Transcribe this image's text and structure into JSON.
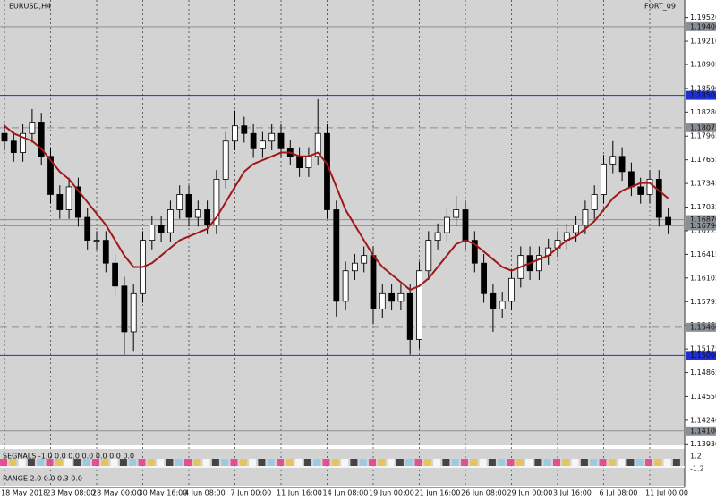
{
  "chart_data": {
    "type": "candlestick",
    "title": "EURUSD,H4",
    "indicator_name": "FORT_09",
    "categories": [
      "18 May 2018",
      null,
      null,
      null,
      null,
      "23 May 08:00",
      null,
      null,
      null,
      null,
      "28 May 00:00",
      null,
      null,
      null,
      null,
      "30 May 16:00",
      null,
      null,
      null,
      null,
      "4 Jun 08:00",
      null,
      null,
      null,
      null,
      "7 Jun 00:00",
      null,
      null,
      null,
      null,
      "11 Jun 16:00",
      null,
      null,
      null,
      null,
      "14 Jun 08:00",
      null,
      null,
      null,
      null,
      "19 Jun 00:00",
      null,
      null,
      null,
      null,
      "21 Jun 16:00",
      null,
      null,
      null,
      null,
      "26 Jun 08:00",
      null,
      null,
      null,
      null,
      "29 Jun 00:00",
      null,
      null,
      null,
      null,
      "3 Jul 16:00",
      null,
      null,
      null,
      null,
      "6 Jul 08:00",
      null,
      null,
      null,
      null,
      "11 Jul 00:00",
      null,
      null
    ],
    "open": [
      1.18,
      1.179,
      1.1775,
      1.18,
      1.1815,
      1.177,
      1.172,
      1.17,
      1.173,
      1.169,
      1.166,
      1.166,
      1.163,
      1.16,
      1.154,
      1.159,
      1.166,
      1.168,
      1.167,
      1.17,
      1.172,
      1.169,
      1.17,
      1.168,
      1.174,
      1.179,
      1.181,
      1.18,
      1.178,
      1.179,
      1.18,
      1.178,
      1.177,
      1.1755,
      1.177,
      1.18,
      1.17,
      1.158,
      1.162,
      1.163,
      1.164,
      1.157,
      1.159,
      1.158,
      1.159,
      1.153,
      1.162,
      1.166,
      1.167,
      1.169,
      1.17,
      1.166,
      1.163,
      1.159,
      1.157,
      1.158,
      1.161,
      1.164,
      1.162,
      1.164,
      1.165,
      1.166,
      1.167,
      1.168,
      1.17,
      1.172,
      1.176,
      1.177,
      1.175,
      1.173,
      1.172,
      1.174,
      1.169
    ],
    "high": [
      1.1812,
      1.1802,
      1.1812,
      1.1832,
      1.1827,
      1.1782,
      1.1732,
      1.1742,
      1.1742,
      1.1702,
      1.1672,
      1.1672,
      1.1642,
      1.1612,
      1.1602,
      1.1672,
      1.1692,
      1.1692,
      1.1712,
      1.1732,
      1.1732,
      1.1712,
      1.1712,
      1.1752,
      1.1802,
      1.183,
      1.1822,
      1.1812,
      1.1802,
      1.1812,
      1.1812,
      1.1792,
      1.1782,
      1.1782,
      1.1845,
      1.1812,
      1.1712,
      1.1632,
      1.1642,
      1.1652,
      1.1652,
      1.1602,
      1.1602,
      1.1602,
      1.1602,
      1.1632,
      1.1672,
      1.1682,
      1.1702,
      1.1718,
      1.1712,
      1.1672,
      1.1642,
      1.1602,
      1.1592,
      1.1622,
      1.1652,
      1.1652,
      1.1652,
      1.1662,
      1.1672,
      1.1682,
      1.1692,
      1.1712,
      1.1732,
      1.1772,
      1.179,
      1.1782,
      1.1762,
      1.1742,
      1.1752,
      1.1752,
      1.1702
    ],
    "low": [
      1.1778,
      1.1763,
      1.1763,
      1.1788,
      1.1758,
      1.1708,
      1.1688,
      1.1688,
      1.1678,
      1.1648,
      1.1648,
      1.1618,
      1.1588,
      1.151,
      1.1515,
      1.1578,
      1.1648,
      1.1658,
      1.1658,
      1.1688,
      1.1678,
      1.1678,
      1.1668,
      1.1668,
      1.1728,
      1.1778,
      1.1788,
      1.1768,
      1.1768,
      1.1778,
      1.1768,
      1.1758,
      1.1743,
      1.1743,
      1.1758,
      1.1688,
      1.156,
      1.1568,
      1.1608,
      1.1618,
      1.155,
      1.1558,
      1.1568,
      1.1568,
      1.151,
      1.1518,
      1.1608,
      1.1648,
      1.1658,
      1.1678,
      1.1648,
      1.1618,
      1.1578,
      1.154,
      1.1558,
      1.1568,
      1.1598,
      1.1608,
      1.1608,
      1.1628,
      1.1638,
      1.1648,
      1.1658,
      1.1668,
      1.1688,
      1.1708,
      1.1748,
      1.1738,
      1.1718,
      1.1708,
      1.1708,
      1.1678,
      1.1668
    ],
    "close": [
      1.179,
      1.1775,
      1.18,
      1.1815,
      1.177,
      1.172,
      1.17,
      1.173,
      1.169,
      1.166,
      1.166,
      1.163,
      1.16,
      1.154,
      1.159,
      1.166,
      1.168,
      1.167,
      1.17,
      1.172,
      1.169,
      1.17,
      1.168,
      1.174,
      1.179,
      1.181,
      1.18,
      1.178,
      1.179,
      1.18,
      1.178,
      1.177,
      1.1755,
      1.177,
      1.18,
      1.17,
      1.158,
      1.162,
      1.163,
      1.164,
      1.157,
      1.159,
      1.158,
      1.159,
      1.153,
      1.162,
      1.166,
      1.167,
      1.169,
      1.17,
      1.166,
      1.163,
      1.159,
      1.157,
      1.158,
      1.161,
      1.164,
      1.162,
      1.164,
      1.165,
      1.166,
      1.167,
      1.168,
      1.17,
      1.172,
      1.176,
      1.177,
      1.175,
      1.173,
      1.172,
      1.174,
      1.169,
      1.168
    ],
    "ma": {
      "color": "#a01818",
      "values": [
        1.181,
        1.18,
        1.1795,
        1.179,
        1.178,
        1.1765,
        1.175,
        1.174,
        1.1725,
        1.171,
        1.1695,
        1.168,
        1.166,
        1.164,
        1.1625,
        1.1625,
        1.163,
        1.164,
        1.165,
        1.166,
        1.1665,
        1.167,
        1.1675,
        1.169,
        1.171,
        1.173,
        1.175,
        1.176,
        1.1765,
        1.177,
        1.1775,
        1.1775,
        1.177,
        1.177,
        1.1775,
        1.176,
        1.173,
        1.17,
        1.168,
        1.166,
        1.164,
        1.1625,
        1.1615,
        1.1605,
        1.1595,
        1.16,
        1.161,
        1.1625,
        1.164,
        1.1655,
        1.166,
        1.1655,
        1.1645,
        1.1635,
        1.1625,
        1.162,
        1.1625,
        1.163,
        1.1635,
        1.164,
        1.165,
        1.166,
        1.1665,
        1.1675,
        1.1685,
        1.17,
        1.1715,
        1.1725,
        1.173,
        1.1735,
        1.1735,
        1.1725,
        1.1715
      ]
    },
    "ylim": [
      1.1391,
      1.1975
    ],
    "yticks": [
      {
        "value": 1.1952,
        "label": "1.19520"
      },
      {
        "value": 1.1921,
        "label": "1.19210"
      },
      {
        "value": 1.18905,
        "label": "1.18905"
      },
      {
        "value": 1.1859,
        "label": "1.18590"
      },
      {
        "value": 1.1828,
        "label": "1.18280"
      },
      {
        "value": 1.17965,
        "label": "1.17965"
      },
      {
        "value": 1.17655,
        "label": "1.17655"
      },
      {
        "value": 1.17345,
        "label": "1.17345"
      },
      {
        "value": 1.17035,
        "label": "1.17035"
      },
      {
        "value": 1.16725,
        "label": "1.16725"
      },
      {
        "value": 1.16415,
        "label": "1.16415"
      },
      {
        "value": 1.16105,
        "label": "1.16105"
      },
      {
        "value": 1.15795,
        "label": "1.15795"
      },
      {
        "value": 1.15485,
        "label": "1.15485"
      },
      {
        "value": 1.15175,
        "label": "1.15175"
      },
      {
        "value": 1.14865,
        "label": "1.14865"
      },
      {
        "value": 1.1455,
        "label": "1.14550"
      },
      {
        "value": 1.1424,
        "label": "1.14240"
      },
      {
        "value": 1.1393,
        "label": "1.13930"
      }
    ],
    "levels": [
      {
        "value": 1.194,
        "label": "1.19400",
        "color": "#8a8f96",
        "style": "solid"
      },
      {
        "value": 1.185,
        "label": "1.18500",
        "color": "#1f2fd6",
        "style": "solid"
      },
      {
        "value": 1.18075,
        "label": "1.18075",
        "color": "#8a8f96",
        "style": "dashed"
      },
      {
        "value": 1.1687,
        "label": "1.16870",
        "color": "#8a8f96",
        "style": "solid"
      },
      {
        "value": 1.1679,
        "label": "1.16790",
        "color": "#8a8f96",
        "style": "solid"
      },
      {
        "value": 1.1546,
        "label": "1.15460",
        "color": "#8a8f96",
        "style": "dashed"
      },
      {
        "value": 1.1509,
        "label": "1.15090",
        "color": "#1f2fd6",
        "style": "solid"
      },
      {
        "value": 1.141,
        "label": "1.14100",
        "color": "#8a8f96",
        "style": "solid"
      }
    ],
    "grid": true,
    "signals_label": "SEGNALS -1.0 0.0 0.0 0.0 0.0 0.0 0.0",
    "range_label": "RANGE 2.0 0.0 0.3 0.0",
    "sub_yticks": [
      1.2,
      -1.2
    ]
  }
}
